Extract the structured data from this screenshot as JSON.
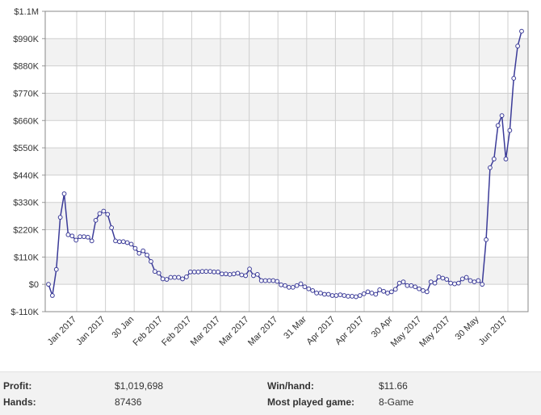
{
  "chart_data": {
    "type": "line",
    "title": "",
    "xlabel": "",
    "ylabel": "",
    "ylim": [
      -110000,
      1100000
    ],
    "y_ticks": [
      -110000,
      0,
      110000,
      220000,
      330000,
      440000,
      550000,
      660000,
      770000,
      880000,
      990000,
      1100000
    ],
    "y_tick_labels": [
      "$-110K",
      "$0",
      "$110K",
      "$220K",
      "$330K",
      "$440K",
      "$550K",
      "$660K",
      "$770K",
      "$880K",
      "$990K",
      "$1.1M"
    ],
    "x_tick_labels": [
      "Jan 2017",
      "Jan 2017",
      "30 Jan",
      "Feb 2017",
      "Feb 2017",
      "Mar 2017",
      "Mar 2017",
      "Mar 2017",
      "31 Mar",
      "Apr 2017",
      "Apr 2017",
      "30 Apr",
      "May 2017",
      "May 2017",
      "30 May",
      "Jun 2017"
    ],
    "grid": true,
    "series": [
      {
        "color": "#3b3b98",
        "values": [
          0,
          -45000,
          60000,
          270000,
          365000,
          200000,
          195000,
          178000,
          192000,
          192000,
          190000,
          175000,
          258000,
          285000,
          295000,
          282000,
          228000,
          175000,
          172000,
          172000,
          168000,
          162000,
          145000,
          125000,
          135000,
          118000,
          92000,
          52000,
          45000,
          22000,
          20000,
          28000,
          28000,
          28000,
          22000,
          30000,
          50000,
          50000,
          50000,
          52000,
          52000,
          52000,
          50000,
          50000,
          42000,
          42000,
          40000,
          42000,
          45000,
          38000,
          35000,
          62000,
          35000,
          40000,
          15000,
          15000,
          15000,
          15000,
          12000,
          -2000,
          -5000,
          -12000,
          -12000,
          -5000,
          2000,
          -10000,
          -18000,
          -25000,
          -35000,
          -35000,
          -40000,
          -40000,
          -45000,
          -45000,
          -42000,
          -45000,
          -48000,
          -48000,
          -50000,
          -45000,
          -38000,
          -30000,
          -35000,
          -40000,
          -22000,
          -28000,
          -35000,
          -30000,
          -20000,
          5000,
          10000,
          -5000,
          -5000,
          -10000,
          -18000,
          -25000,
          -30000,
          10000,
          5000,
          30000,
          25000,
          20000,
          5000,
          2000,
          5000,
          22000,
          28000,
          15000,
          10000,
          15000,
          0,
          180000,
          470000,
          505000,
          640000,
          680000,
          505000,
          620000,
          830000,
          960000,
          1019698
        ]
      }
    ]
  },
  "stats": {
    "profit_label": "Profit:",
    "profit_value": "$1,019,698",
    "hands_label": "Hands:",
    "hands_value": "87436",
    "winhand_label": "Win/hand:",
    "winhand_value": "$11.66",
    "game_label": "Most played game:",
    "game_value": "8-Game"
  }
}
